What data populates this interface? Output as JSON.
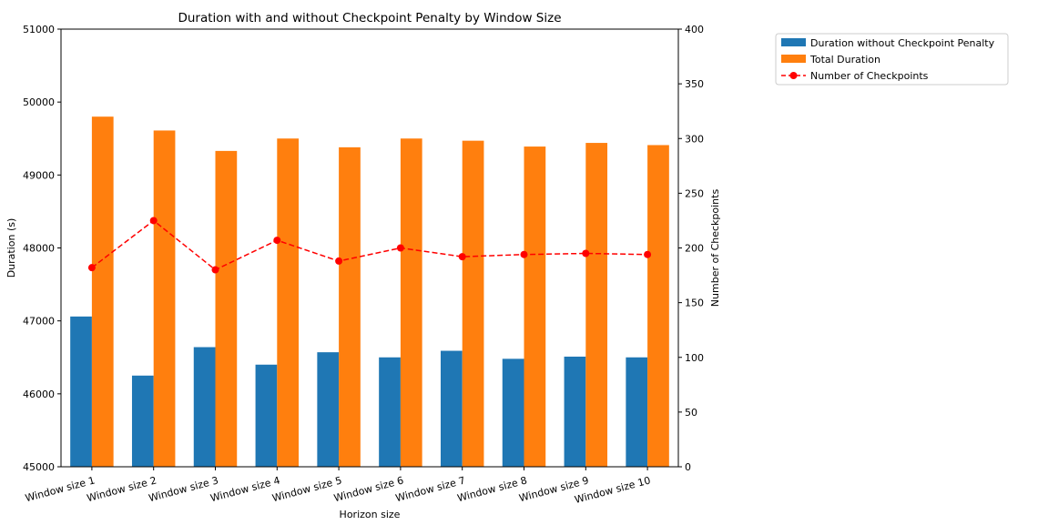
{
  "chart_data": {
    "type": "bar",
    "title": "Duration with and without Checkpoint Penalty by Window Size",
    "xlabel": "Horizon size",
    "ylabel": "Duration (s)",
    "y2label": "Number of Checkpoints",
    "categories": [
      "Window size 1",
      "Window size 2",
      "Window size 3",
      "Window size 4",
      "Window size 5",
      "Window size 6",
      "Window size 7",
      "Window size 8",
      "Window size 9",
      "Window size 10"
    ],
    "ylim": [
      45000,
      51000
    ],
    "y2lim": [
      0,
      400
    ],
    "yticks": [
      45000,
      46000,
      47000,
      48000,
      49000,
      50000,
      51000
    ],
    "y2ticks": [
      0,
      50,
      100,
      150,
      200,
      250,
      300,
      350,
      400
    ],
    "series": [
      {
        "name": "Duration without Checkpoint Penalty",
        "kind": "bar",
        "axis": "left",
        "color": "#1f77b4",
        "values": [
          47060,
          46250,
          46640,
          46400,
          46570,
          46500,
          46590,
          46480,
          46510,
          46500
        ]
      },
      {
        "name": "Total Duration",
        "kind": "bar",
        "axis": "left",
        "color": "#ff7f0e",
        "values": [
          49800,
          49610,
          49330,
          49500,
          49380,
          49500,
          49470,
          49390,
          49440,
          49410
        ]
      },
      {
        "name": "Number of Checkpoints",
        "kind": "line",
        "axis": "right",
        "color": "#ff0000",
        "line_style": "dashed",
        "marker": "circle",
        "values": [
          182,
          225,
          180,
          207,
          188,
          200,
          192,
          194,
          195,
          194
        ]
      }
    ],
    "legend_position": "outside-top-right",
    "grid": false
  }
}
